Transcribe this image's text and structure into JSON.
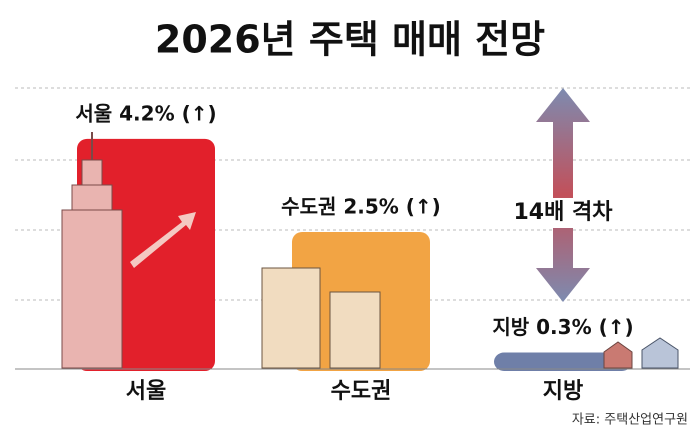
{
  "chart_data": {
    "type": "bar",
    "title": "2026년 주택 매매 전망",
    "categories": [
      "서울",
      "수도권",
      "지방"
    ],
    "values": [
      4.2,
      2.5,
      0.3
    ],
    "value_labels": [
      "서울 4.2% (↑)",
      "수도권 2.5% (↑)",
      "지방 0.3% (↑)"
    ],
    "colors": [
      "#e2202b",
      "#f2a444",
      "#6f7fa8"
    ],
    "ylim": [
      0,
      5
    ],
    "annotation": "14배 격차",
    "source": "자료: 주택산업연구원"
  }
}
